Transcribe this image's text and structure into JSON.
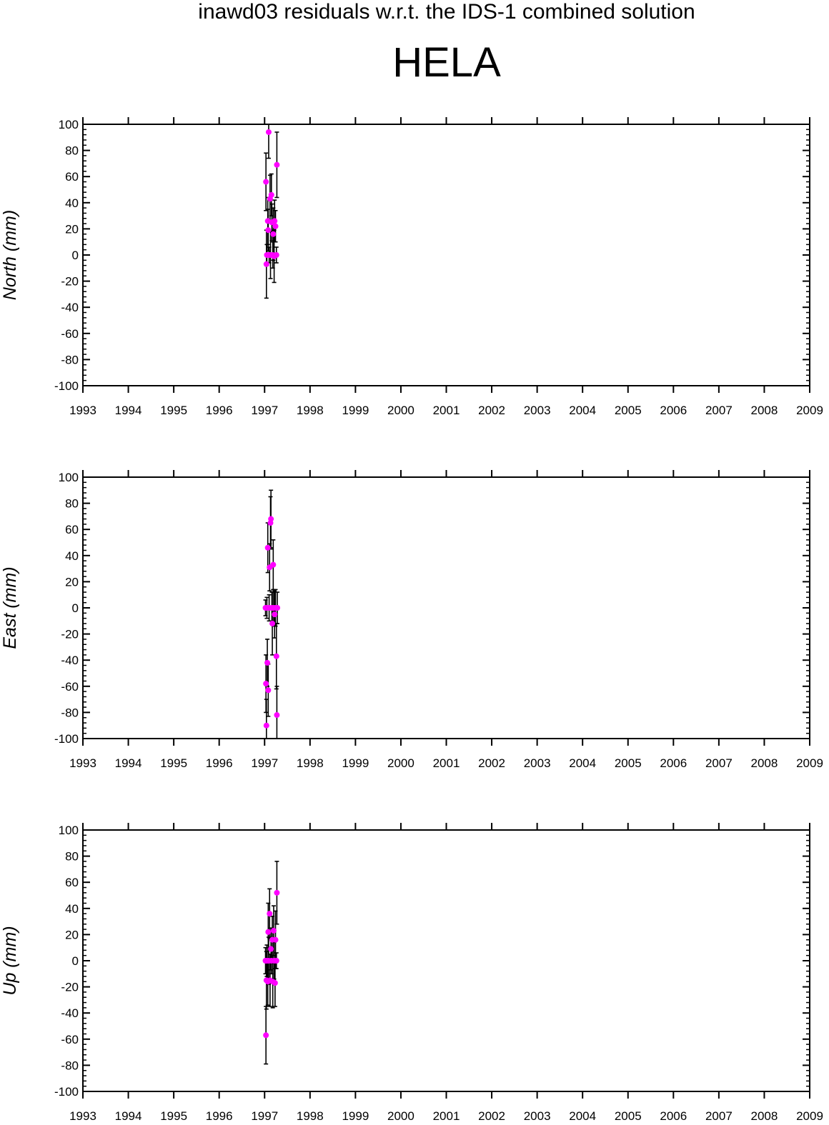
{
  "header": {
    "subtitle": "inawd03 residuals w.r.t. the IDS-1 combined solution",
    "title": "HELA"
  },
  "colors": {
    "point": "#ff00ff",
    "errorbar": "#000000",
    "axis": "#000000"
  },
  "chart_data": [
    {
      "type": "scatter",
      "name": "north",
      "ylabel": "North (mm)",
      "xlim": [
        1993,
        2009
      ],
      "ylim": [
        -100,
        100
      ],
      "xticks": [
        "1993",
        "1994",
        "1995",
        "1996",
        "1997",
        "1998",
        "1999",
        "2000",
        "2001",
        "2002",
        "2003",
        "2004",
        "2005",
        "2006",
        "2007",
        "2008",
        "2009"
      ],
      "yticks": [
        "100",
        "80",
        "60",
        "40",
        "20",
        "0",
        "-20",
        "-40",
        "-60",
        "-80",
        "-100"
      ],
      "points": [
        {
          "x": 1997.03,
          "y": 56,
          "err": 22
        },
        {
          "x": 1997.04,
          "y": -7,
          "err": 26
        },
        {
          "x": 1997.05,
          "y": 0,
          "err": 8
        },
        {
          "x": 1997.07,
          "y": 26,
          "err": 18
        },
        {
          "x": 1997.08,
          "y": 19,
          "err": 16
        },
        {
          "x": 1997.09,
          "y": 94,
          "err": 20
        },
        {
          "x": 1997.1,
          "y": 0,
          "err": 6
        },
        {
          "x": 1997.12,
          "y": 43,
          "err": 18
        },
        {
          "x": 1997.13,
          "y": 0,
          "err": 18
        },
        {
          "x": 1997.15,
          "y": 46,
          "err": 16
        },
        {
          "x": 1997.16,
          "y": 25,
          "err": 14
        },
        {
          "x": 1997.18,
          "y": 0,
          "err": 10
        },
        {
          "x": 1997.19,
          "y": 16,
          "err": 20
        },
        {
          "x": 1997.21,
          "y": -1,
          "err": 20
        },
        {
          "x": 1997.22,
          "y": 26,
          "err": 16
        },
        {
          "x": 1997.24,
          "y": 22,
          "err": 12
        },
        {
          "x": 1997.26,
          "y": 0,
          "err": 6
        },
        {
          "x": 1997.27,
          "y": 69,
          "err": 25
        }
      ]
    },
    {
      "type": "scatter",
      "name": "east",
      "ylabel": "East (mm)",
      "xlim": [
        1993,
        2009
      ],
      "ylim": [
        -100,
        100
      ],
      "xticks": [
        "1993",
        "1994",
        "1995",
        "1996",
        "1997",
        "1998",
        "1999",
        "2000",
        "2001",
        "2002",
        "2003",
        "2004",
        "2005",
        "2006",
        "2007",
        "2008",
        "2009"
      ],
      "yticks": [
        "100",
        "80",
        "60",
        "40",
        "20",
        "0",
        "-20",
        "-40",
        "-60",
        "-80",
        "-100"
      ],
      "points": [
        {
          "x": 1997.02,
          "y": 0,
          "err": 6
        },
        {
          "x": 1997.03,
          "y": -58,
          "err": 22
        },
        {
          "x": 1997.04,
          "y": -90,
          "err": 20
        },
        {
          "x": 1997.05,
          "y": 0,
          "err": 8
        },
        {
          "x": 1997.06,
          "y": -42,
          "err": 18
        },
        {
          "x": 1997.07,
          "y": 46,
          "err": 19
        },
        {
          "x": 1997.08,
          "y": -63,
          "err": 20
        },
        {
          "x": 1997.1,
          "y": 0,
          "err": 10
        },
        {
          "x": 1997.11,
          "y": 31,
          "err": 18
        },
        {
          "x": 1997.13,
          "y": 65,
          "err": 20
        },
        {
          "x": 1997.14,
          "y": 68,
          "err": 22
        },
        {
          "x": 1997.16,
          "y": 0,
          "err": 12
        },
        {
          "x": 1997.17,
          "y": -12,
          "err": 24
        },
        {
          "x": 1997.19,
          "y": 33,
          "err": 19
        },
        {
          "x": 1997.2,
          "y": 0,
          "err": 14
        },
        {
          "x": 1997.22,
          "y": -5,
          "err": 18
        },
        {
          "x": 1997.24,
          "y": 0,
          "err": 14
        },
        {
          "x": 1997.26,
          "y": -37,
          "err": 25
        },
        {
          "x": 1997.27,
          "y": -82,
          "err": 22
        },
        {
          "x": 1997.28,
          "y": 0,
          "err": 12
        }
      ]
    },
    {
      "type": "scatter",
      "name": "up",
      "ylabel": "Up (mm)",
      "xlim": [
        1993,
        2009
      ],
      "ylim": [
        -100,
        100
      ],
      "xticks": [
        "1993",
        "1994",
        "1995",
        "1996",
        "1997",
        "1998",
        "1999",
        "2000",
        "2001",
        "2002",
        "2003",
        "2004",
        "2005",
        "2006",
        "2007",
        "2008",
        "2009"
      ],
      "yticks": [
        "100",
        "80",
        "60",
        "40",
        "20",
        "0",
        "-20",
        "-40",
        "-60",
        "-80",
        "-100"
      ],
      "points": [
        {
          "x": 1997.02,
          "y": 0,
          "err": 10
        },
        {
          "x": 1997.03,
          "y": -57,
          "err": 22
        },
        {
          "x": 1997.04,
          "y": -15,
          "err": 22
        },
        {
          "x": 1997.05,
          "y": 0,
          "err": 12
        },
        {
          "x": 1997.07,
          "y": -16,
          "err": 18
        },
        {
          "x": 1997.08,
          "y": 22,
          "err": 22
        },
        {
          "x": 1997.09,
          "y": 0,
          "err": 18
        },
        {
          "x": 1997.11,
          "y": 36,
          "err": 19
        },
        {
          "x": 1997.12,
          "y": -15,
          "err": 20
        },
        {
          "x": 1997.14,
          "y": 9,
          "err": 16
        },
        {
          "x": 1997.15,
          "y": 0,
          "err": 10
        },
        {
          "x": 1997.17,
          "y": 16,
          "err": 18
        },
        {
          "x": 1997.18,
          "y": -16,
          "err": 20
        },
        {
          "x": 1997.2,
          "y": 23,
          "err": 19
        },
        {
          "x": 1997.21,
          "y": 0,
          "err": 14
        },
        {
          "x": 1997.23,
          "y": -17,
          "err": 18
        },
        {
          "x": 1997.24,
          "y": 16,
          "err": 22
        },
        {
          "x": 1997.26,
          "y": 0,
          "err": 6
        },
        {
          "x": 1997.27,
          "y": 52,
          "err": 24
        }
      ]
    }
  ]
}
